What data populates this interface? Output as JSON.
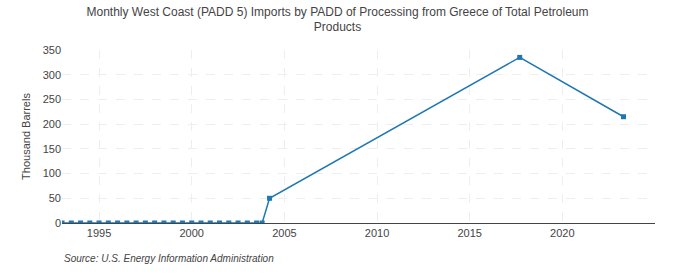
{
  "chart_data": {
    "type": "line",
    "title": "Monthly West Coast (PADD 5) Imports by PADD of Processing from Greece of Total Petroleum\nProducts",
    "y_label": "Thousand Barrels",
    "annotations": [
      "Source: U.S. Energy Information Administration"
    ],
    "x": [
      1993.0,
      1993.5,
      1994.0,
      1994.5,
      1995.0,
      1995.5,
      1996.0,
      1996.5,
      1997.0,
      1997.5,
      1998.0,
      1998.5,
      1999.0,
      1999.5,
      2000.0,
      2000.5,
      2001.0,
      2001.5,
      2002.0,
      2002.5,
      2003.0,
      2003.5,
      2003.8,
      2004.2,
      2017.7,
      2023.3
    ],
    "values": [
      0,
      0,
      0,
      0,
      0,
      0,
      0,
      0,
      0,
      0,
      0,
      0,
      0,
      0,
      0,
      0,
      0,
      0,
      0,
      0,
      0,
      0,
      0,
      50,
      335,
      215
    ],
    "xlim": [
      1993.0,
      2025.0
    ],
    "ylim": [
      0,
      350
    ],
    "xticks": [
      1995,
      2000,
      2005,
      2010,
      2015,
      2020
    ],
    "yticks": [
      0,
      50,
      100,
      150,
      200,
      250,
      300,
      350
    ],
    "marker": "square",
    "line_style": "solid",
    "grid": true
  }
}
